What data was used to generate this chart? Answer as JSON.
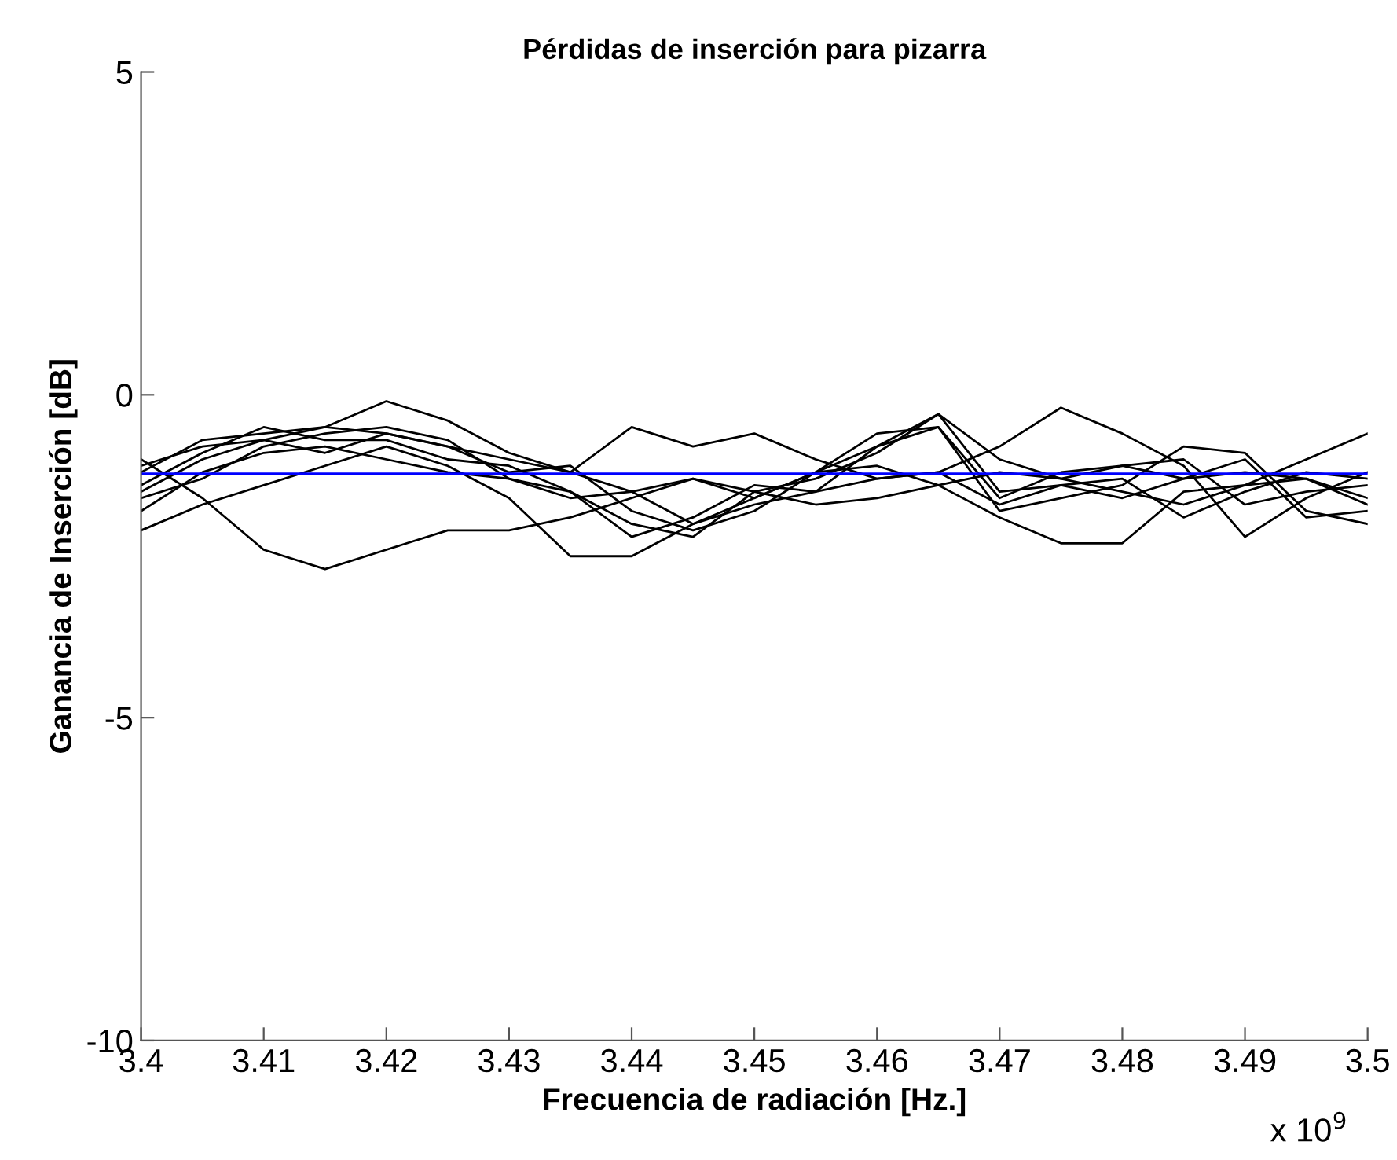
{
  "chart_data": {
    "type": "line",
    "title": "Pérdidas de inserción para pizarra",
    "xlabel": "Frecuencia de radiación [Hz.]",
    "ylabel": "Ganancia de Inserción [dB]",
    "annotations": [
      "x 10$^{9}$"
    ],
    "x": [
      3.4,
      3.405,
      3.41,
      3.415,
      3.42,
      3.425,
      3.43,
      3.435,
      3.44,
      3.445,
      3.45,
      3.455,
      3.46,
      3.465,
      3.47,
      3.475,
      3.48,
      3.485,
      3.49,
      3.495,
      3.5
    ],
    "xlim": [
      3.4,
      3.5
    ],
    "xticks": [
      3.4,
      3.41,
      3.42,
      3.43,
      3.44,
      3.45,
      3.46,
      3.47,
      3.48,
      3.49,
      3.5
    ],
    "ylim": [
      -10,
      5
    ],
    "yticks": [
      -10,
      -5,
      0,
      5
    ],
    "grid": false,
    "legend": false,
    "marker": "none",
    "line_style": "solid",
    "ref_lines": [
      {
        "axis": "y",
        "value": -1.22,
        "color": "#0000ff",
        "line_style": "solid"
      }
    ],
    "series": [
      {
        "color": "#000000",
        "values": [
          -1.0,
          -1.6,
          -2.4,
          -2.7,
          -2.4,
          -2.1,
          -2.1,
          -1.9,
          -1.6,
          -1.3,
          -1.5,
          -1.7,
          -1.6,
          -1.4,
          -1.2,
          -1.3,
          -1.5,
          -1.7,
          -1.4,
          -1.3,
          -1.6
        ]
      },
      {
        "color": "#000000",
        "values": [
          -1.5,
          -1.0,
          -0.7,
          -0.5,
          -0.1,
          -0.4,
          -0.9,
          -1.2,
          -1.5,
          -2.0,
          -1.6,
          -1.2,
          -0.8,
          -0.3,
          -1.0,
          -1.3,
          -1.1,
          -1.0,
          -1.7,
          -1.5,
          -1.4
        ]
      },
      {
        "color": "#000000",
        "values": [
          -2.1,
          -1.7,
          -1.4,
          -1.1,
          -0.8,
          -1.1,
          -1.6,
          -2.5,
          -2.5,
          -2.0,
          -1.7,
          -1.5,
          -1.3,
          -1.2,
          -1.7,
          -1.4,
          -1.3,
          -1.9,
          -1.5,
          -1.2,
          -1.3
        ]
      },
      {
        "color": "#000000",
        "values": [
          -1.2,
          -0.7,
          -0.6,
          -0.5,
          -0.6,
          -0.8,
          -1.0,
          -1.2,
          -0.5,
          -0.8,
          -0.6,
          -1.0,
          -1.3,
          -1.2,
          -0.8,
          -0.2,
          -0.6,
          -1.1,
          -2.2,
          -1.6,
          -1.2
        ]
      },
      {
        "color": "#000000",
        "values": [
          -1.8,
          -1.2,
          -0.9,
          -0.8,
          -1.0,
          -1.2,
          -1.3,
          -1.6,
          -1.5,
          -1.3,
          -1.6,
          -1.2,
          -1.1,
          -1.4,
          -1.9,
          -2.3,
          -2.3,
          -1.5,
          -1.4,
          -1.0,
          -0.6
        ]
      },
      {
        "color": "#000000",
        "values": [
          -1.4,
          -0.9,
          -0.5,
          -0.7,
          -0.7,
          -1.0,
          -1.1,
          -1.5,
          -2.2,
          -1.9,
          -1.4,
          -1.5,
          -0.8,
          -0.5,
          -1.8,
          -1.6,
          -1.4,
          -0.8,
          -0.9,
          -1.8,
          -2.0
        ]
      },
      {
        "color": "#000000",
        "values": [
          -1.1,
          -0.8,
          -0.7,
          -0.9,
          -0.6,
          -0.8,
          -1.2,
          -1.1,
          -1.8,
          -2.1,
          -1.8,
          -1.2,
          -0.6,
          -0.5,
          -1.6,
          -1.2,
          -1.1,
          -1.3,
          -1.2,
          -1.3,
          -1.7
        ]
      },
      {
        "color": "#000000",
        "values": [
          -1.6,
          -1.3,
          -0.8,
          -0.6,
          -0.5,
          -0.7,
          -1.3,
          -1.5,
          -2.0,
          -2.2,
          -1.5,
          -1.3,
          -0.9,
          -0.3,
          -1.5,
          -1.4,
          -1.6,
          -1.3,
          -1.0,
          -1.9,
          -1.8
        ]
      }
    ]
  }
}
